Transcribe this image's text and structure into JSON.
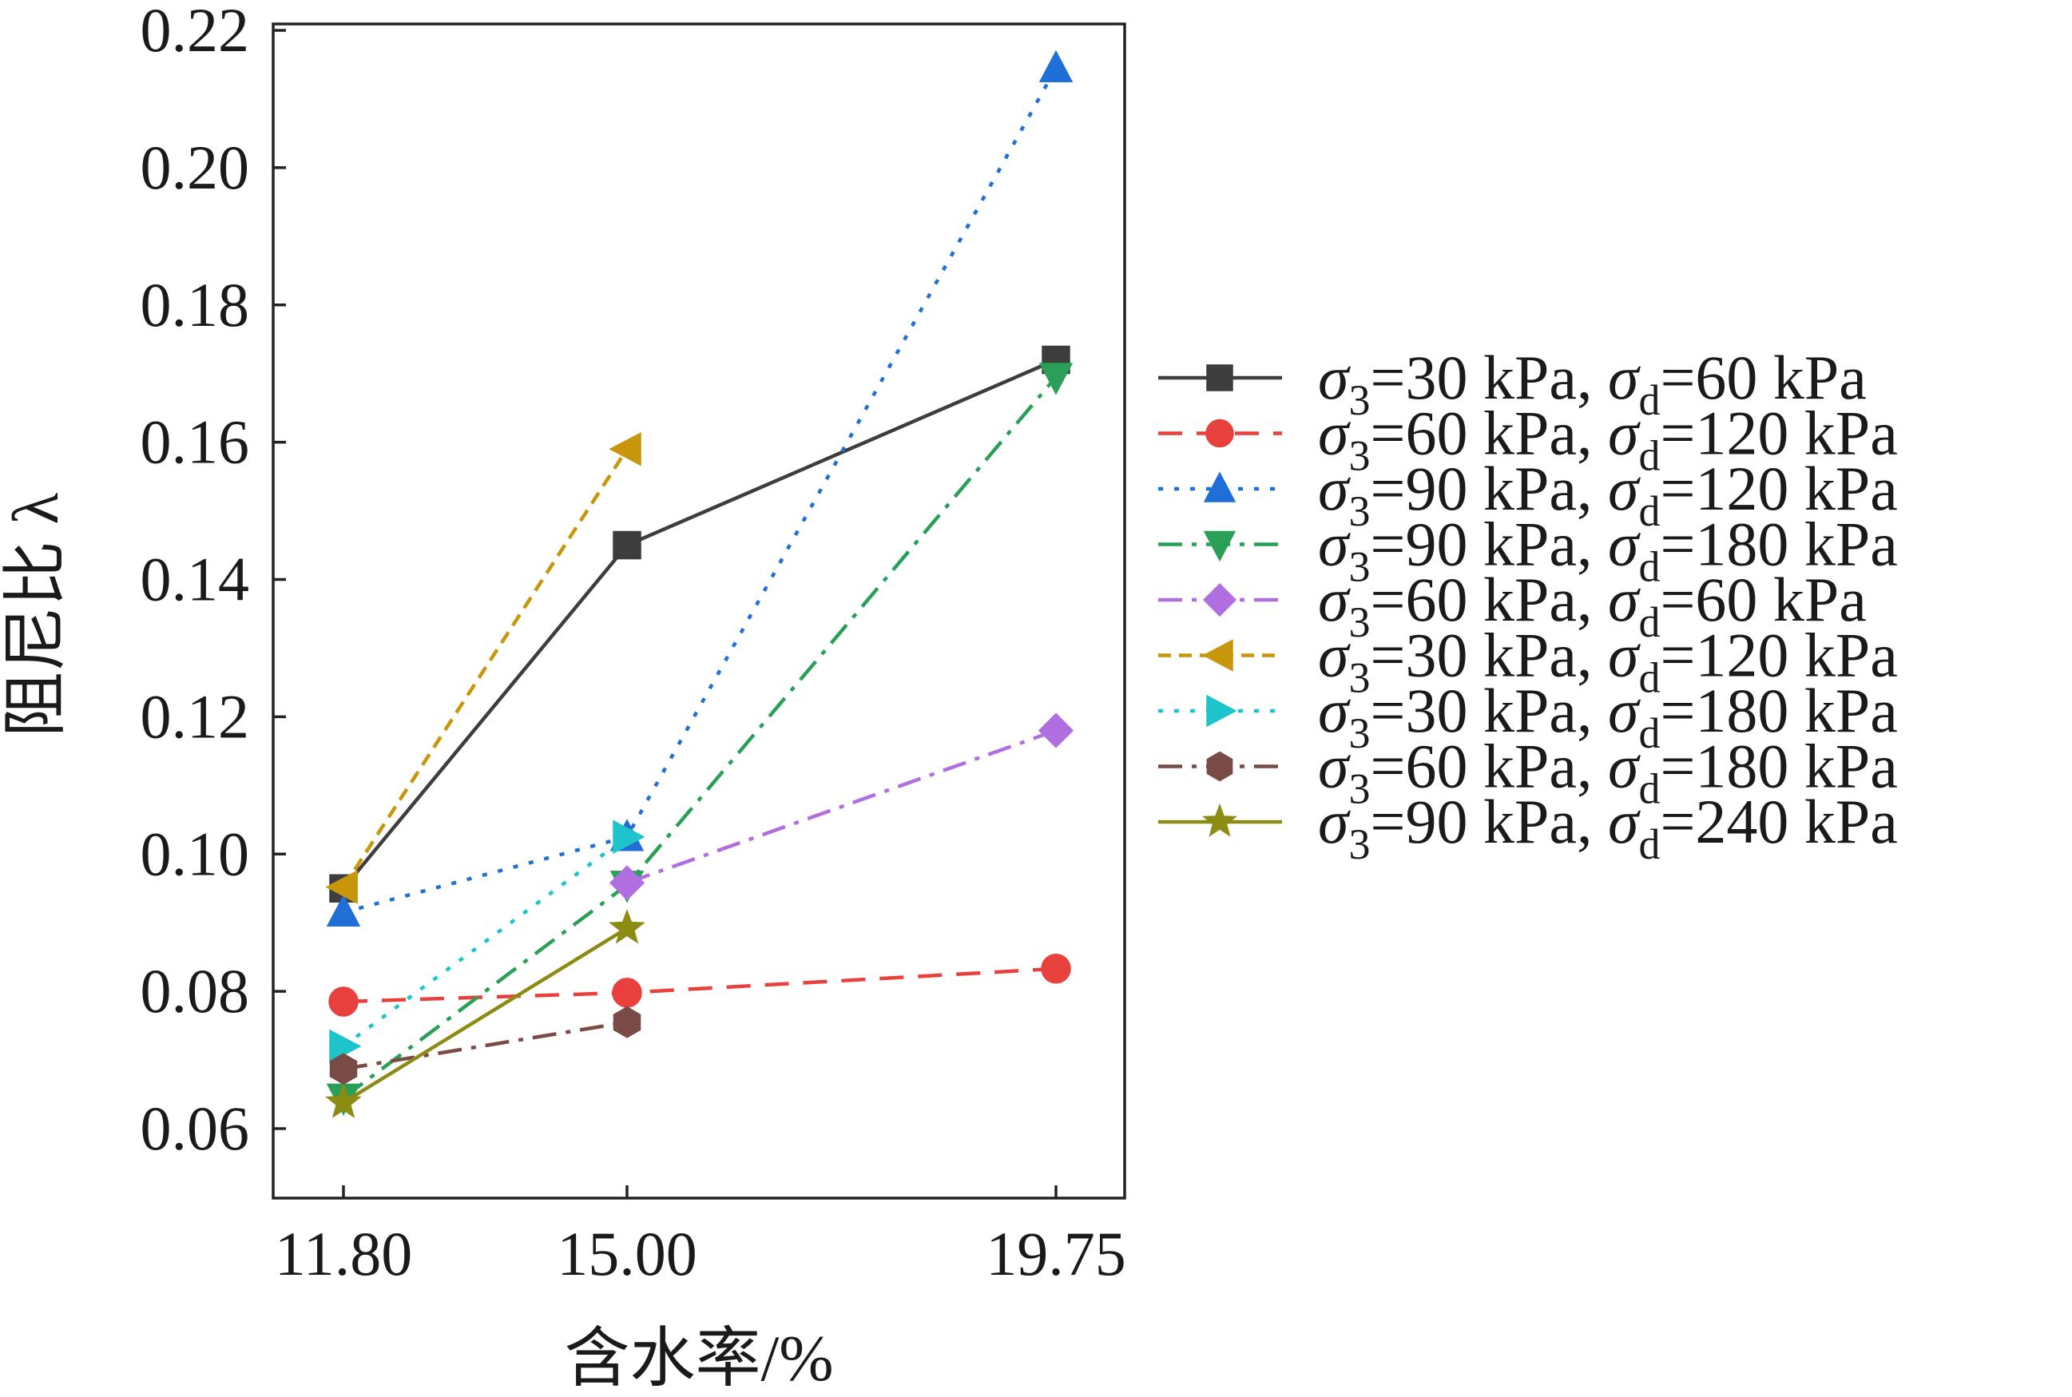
{
  "chart_data": {
    "type": "line",
    "title": "",
    "xlabel": "含水率/%",
    "ylabel": "阻尼比 λ",
    "x": [
      11.8,
      15.0,
      19.75
    ],
    "x_tick_labels": [
      "11.80",
      "15.00",
      "19.75"
    ],
    "ylim": [
      0.05,
      0.22
    ],
    "y_ticks": [
      0.06,
      0.08,
      0.1,
      0.12,
      0.14,
      0.16,
      0.18,
      0.2,
      0.22
    ],
    "y_tick_labels": [
      "0.06",
      "0.08",
      "0.10",
      "0.12",
      "0.14",
      "0.16",
      "0.18",
      "0.20",
      "0.22"
    ],
    "grid": false,
    "legend_position": "right",
    "series": [
      {
        "name": "σ3=30 kPa, σd=60 kPa",
        "sigma3": "30 kPa",
        "sigmad": "60 kPa",
        "values": [
          0.095,
          0.145,
          0.172
        ],
        "color": "#3d3d3d",
        "marker": "square",
        "dash": "solid"
      },
      {
        "name": "σ3=60 kPa, σd=120 kPa",
        "sigma3": "60 kPa",
        "sigmad": "120 kPa",
        "values": [
          0.0785,
          0.0798,
          0.0833
        ],
        "color": "#e8403c",
        "marker": "circle",
        "dash": "dash"
      },
      {
        "name": "σ3=90 kPa, σd=120 kPa",
        "sigma3": "90 kPa",
        "sigmad": "120 kPa",
        "values": [
          0.0915,
          0.1025,
          0.2145
        ],
        "color": "#1f6fd6",
        "marker": "triangle-up",
        "dash": "dot"
      },
      {
        "name": "σ3=90 kPa, σd=180 kPa",
        "sigma3": "90 kPa",
        "sigmad": "180 kPa",
        "values": [
          0.0645,
          0.0955,
          0.1695
        ],
        "color": "#2a9f58",
        "marker": "triangle-down",
        "dash": "dashdot"
      },
      {
        "name": "σ3=60 kPa, σd=60 kPa",
        "sigma3": "60 kPa",
        "sigmad": "60 kPa",
        "values": [
          null,
          0.0958,
          0.118
        ],
        "color": "#b06ee0",
        "marker": "diamond",
        "dash": "dashdot"
      },
      {
        "name": "σ3=30 kPa, σd=120 kPa",
        "sigma3": "30 kPa",
        "sigmad": "120 kPa",
        "values": [
          0.0952,
          0.159,
          null
        ],
        "color": "#c8960a",
        "marker": "triangle-left",
        "dash": "shortdash"
      },
      {
        "name": "σ3=30 kPa, σd=180 kPa",
        "sigma3": "30 kPa",
        "sigmad": "180 kPa",
        "values": [
          0.072,
          0.1025,
          null
        ],
        "color": "#1ec4cc",
        "marker": "triangle-right",
        "dash": "dot"
      },
      {
        "name": "σ3=60 kPa, σd=180 kPa",
        "sigma3": "60 kPa",
        "sigmad": "180 kPa",
        "values": [
          0.0687,
          0.0755,
          null
        ],
        "color": "#7a4a46",
        "marker": "hexagon",
        "dash": "dashdot"
      },
      {
        "name": "σ3=90 kPa, σd=240 kPa",
        "sigma3": "90 kPa",
        "sigmad": "240 kPa",
        "values": [
          0.0638,
          0.0892,
          null
        ],
        "color": "#8c8c14",
        "marker": "star",
        "dash": "solid"
      }
    ]
  }
}
